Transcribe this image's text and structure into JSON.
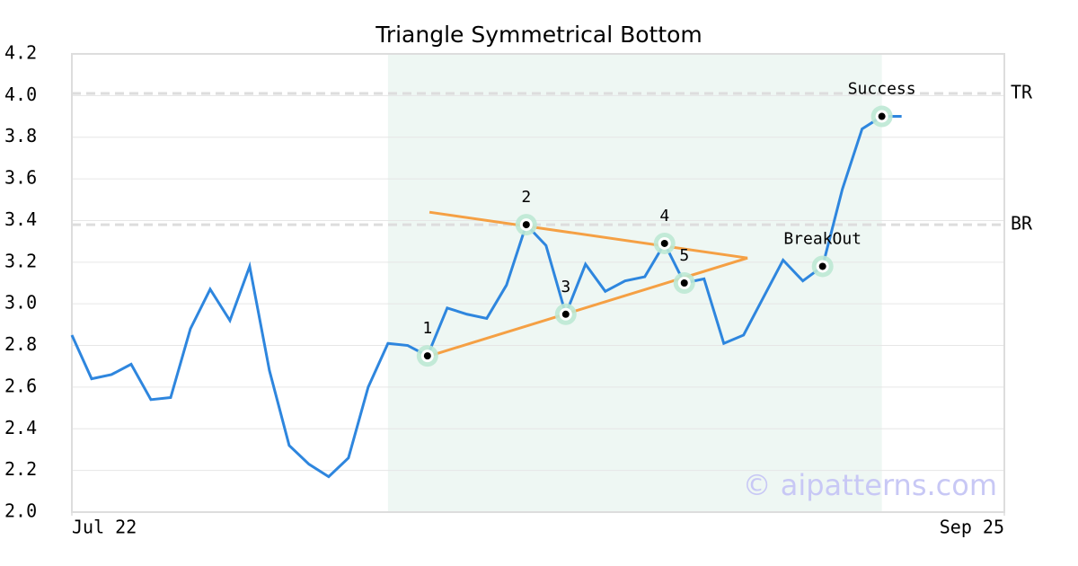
{
  "chart_data": {
    "type": "line",
    "title": "Triangle Symmetrical Bottom",
    "x": [
      0,
      1,
      2,
      3,
      4,
      5,
      6,
      7,
      8,
      9,
      10,
      11,
      12,
      13,
      14,
      15,
      16,
      17,
      18,
      19,
      20,
      21,
      22,
      23,
      24,
      25,
      26,
      27,
      28,
      29,
      30,
      31,
      32,
      33,
      34,
      35,
      36,
      37,
      38,
      39,
      40,
      41,
      42
    ],
    "series": [
      {
        "color": "#2e86de",
        "values": [
          2.85,
          2.64,
          2.66,
          2.71,
          2.54,
          2.55,
          2.88,
          3.07,
          2.92,
          3.18,
          2.68,
          2.32,
          2.23,
          2.17,
          2.26,
          2.6,
          2.81,
          2.8,
          2.75,
          2.98,
          2.95,
          2.93,
          3.09,
          3.38,
          3.28,
          2.95,
          3.19,
          3.06,
          3.11,
          3.13,
          3.29,
          3.1,
          3.12,
          2.81,
          2.85,
          3.03,
          3.21,
          3.11,
          3.18,
          3.55,
          3.84,
          3.9,
          3.9
        ]
      }
    ],
    "xlim": [
      0,
      47.2
    ],
    "xticks": [
      {
        "value": 0,
        "label": "Jul 22"
      },
      {
        "value": 47.2,
        "label": "Sep 25"
      }
    ],
    "ylim": [
      2.0,
      4.2
    ],
    "yticks": [
      {
        "value": 2,
        "label": "2.0"
      },
      2.2,
      2.4,
      2.6,
      2.8,
      {
        "value": 3,
        "label": "3.0"
      },
      3.2,
      3.4,
      3.6,
      3.8,
      {
        "value": 4,
        "label": "4.0"
      },
      4.2
    ],
    "grid": true,
    "pattern_region": [
      16,
      41
    ],
    "region_color": "#eef7f3",
    "trendlines": [
      {
        "color": "#f5a044",
        "x": [
          18.1,
          34.2
        ],
        "y": [
          3.44,
          3.22
        ]
      },
      {
        "color": "#f5a044",
        "x": [
          18.1,
          34.2
        ],
        "y": [
          2.75,
          3.22
        ]
      }
    ],
    "points": [
      {
        "label": "1",
        "x": 18,
        "y": 2.75
      },
      {
        "label": "2",
        "x": 23,
        "y": 3.38
      },
      {
        "label": "3",
        "x": 25,
        "y": 2.95
      },
      {
        "label": "4",
        "x": 30,
        "y": 3.29
      },
      {
        "label": "5",
        "x": 31,
        "y": 3.1
      },
      {
        "label": "BreakOut",
        "x": 38,
        "y": 3.18
      },
      {
        "label": "Success",
        "x": 41,
        "y": 3.9
      }
    ],
    "levels": [
      {
        "label": "TR",
        "value": 4.01
      },
      {
        "label": "BR",
        "value": 3.38
      }
    ],
    "watermark": "© aipatterns.com"
  }
}
